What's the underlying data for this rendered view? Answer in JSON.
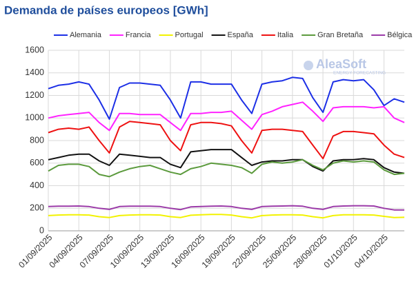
{
  "chart_data": {
    "type": "line",
    "title": "Demanda de países europeos [GWh]",
    "watermark": {
      "brand": "AleaSoft",
      "tagline": "ENERGY FORECASTING"
    },
    "categories": [
      "01/09/2025",
      null,
      null,
      "04/09/2025",
      null,
      null,
      "07/09/2025",
      null,
      null,
      "10/09/2025",
      null,
      null,
      "13/09/2025",
      null,
      null,
      "16/09/2025",
      null,
      null,
      "19/09/2025",
      null,
      null,
      "22/09/2025",
      null,
      null,
      "25/09/2025",
      null,
      null,
      "28/09/2025",
      null,
      null,
      "01/10/2025",
      null,
      null,
      "04/10/2025",
      null,
      null
    ],
    "ylim": [
      0,
      1600
    ],
    "yticks": [
      0,
      200,
      400,
      600,
      800,
      1000,
      1200,
      1400,
      1600
    ],
    "grid": true,
    "legend": "top",
    "series": [
      {
        "name": "Alemania",
        "color": "#1c2fe6",
        "values": [
          1260,
          1290,
          1300,
          1320,
          1300,
          1160,
          990,
          1270,
          1310,
          1310,
          1300,
          1290,
          1160,
          1000,
          1320,
          1320,
          1300,
          1300,
          1300,
          1160,
          1040,
          1300,
          1320,
          1330,
          1360,
          1350,
          1180,
          1050,
          1320,
          1340,
          1330,
          1340,
          1250,
          1110,
          1170,
          1140
        ]
      },
      {
        "name": "Francia",
        "color": "#ff22ff",
        "values": [
          1000,
          1020,
          1030,
          1040,
          1050,
          960,
          890,
          1040,
          1040,
          1030,
          1030,
          1030,
          960,
          890,
          1040,
          1040,
          1050,
          1050,
          1060,
          980,
          900,
          1030,
          1060,
          1100,
          1120,
          1140,
          1060,
          970,
          1090,
          1100,
          1100,
          1100,
          1090,
          1100,
          1000,
          960
        ]
      },
      {
        "name": "Portugal",
        "color": "#f2f200",
        "values": [
          135,
          140,
          142,
          142,
          140,
          125,
          118,
          135,
          140,
          142,
          142,
          140,
          125,
          118,
          138,
          142,
          145,
          145,
          140,
          125,
          115,
          135,
          140,
          142,
          142,
          140,
          125,
          115,
          135,
          142,
          142,
          142,
          140,
          128,
          118,
          120
        ]
      },
      {
        "name": "España",
        "color": "#111111",
        "values": [
          630,
          650,
          670,
          680,
          680,
          620,
          580,
          680,
          670,
          660,
          650,
          650,
          590,
          560,
          700,
          710,
          720,
          720,
          720,
          650,
          580,
          610,
          620,
          620,
          630,
          630,
          570,
          530,
          620,
          630,
          630,
          640,
          630,
          560,
          520,
          510
        ]
      },
      {
        "name": "Italia",
        "color": "#ee1111",
        "values": [
          870,
          900,
          910,
          900,
          920,
          800,
          690,
          920,
          970,
          960,
          950,
          940,
          800,
          710,
          940,
          960,
          960,
          950,
          930,
          800,
          690,
          890,
          900,
          900,
          890,
          880,
          760,
          640,
          840,
          880,
          880,
          870,
          860,
          760,
          680,
          650
        ]
      },
      {
        "name": "Gran Bretaña",
        "color": "#5b9a3c",
        "values": [
          530,
          580,
          590,
          590,
          570,
          500,
          480,
          520,
          550,
          570,
          580,
          550,
          520,
          500,
          550,
          570,
          600,
          590,
          580,
          560,
          510,
          590,
          610,
          600,
          610,
          630,
          580,
          540,
          600,
          620,
          610,
          620,
          610,
          540,
          500,
          510
        ]
      },
      {
        "name": "Bélgica",
        "color": "#9b3aa8",
        "values": [
          215,
          218,
          218,
          220,
          215,
          200,
          190,
          215,
          218,
          218,
          218,
          215,
          200,
          188,
          212,
          215,
          218,
          220,
          215,
          200,
          190,
          215,
          218,
          220,
          222,
          218,
          200,
          190,
          215,
          220,
          222,
          222,
          220,
          200,
          185,
          185
        ]
      }
    ]
  }
}
